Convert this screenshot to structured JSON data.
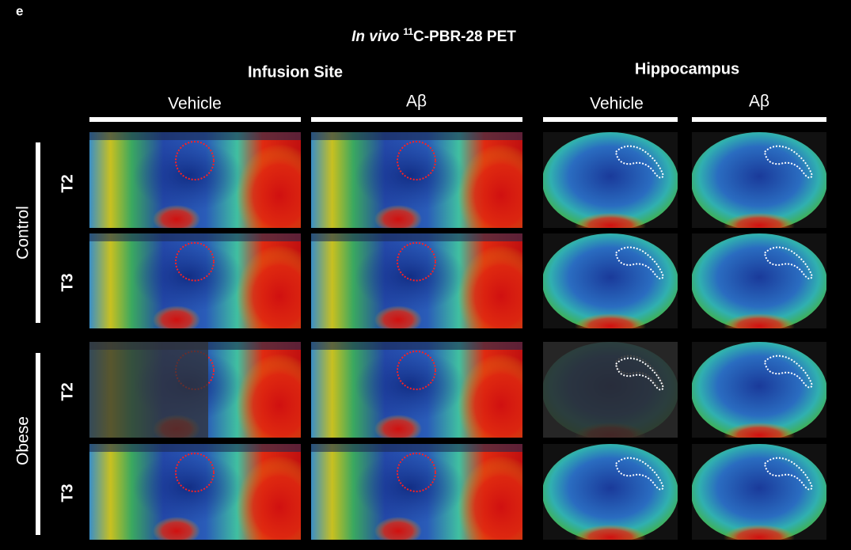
{
  "panel_label": "e",
  "title": {
    "italic": "In vivo",
    "sup": "11",
    "rest": "C-PBR-28 PET"
  },
  "groups": [
    {
      "label": "Infusion Site",
      "columns": [
        "Vehicle",
        "Aβ"
      ]
    },
    {
      "label": "Hippocampus",
      "columns": [
        "Vehicle",
        "Aβ"
      ]
    }
  ],
  "rows": [
    {
      "label": "Control",
      "timepoints": [
        "T2",
        "T3"
      ]
    },
    {
      "label": "Obese",
      "timepoints": [
        "T2",
        "T3"
      ]
    }
  ]
}
